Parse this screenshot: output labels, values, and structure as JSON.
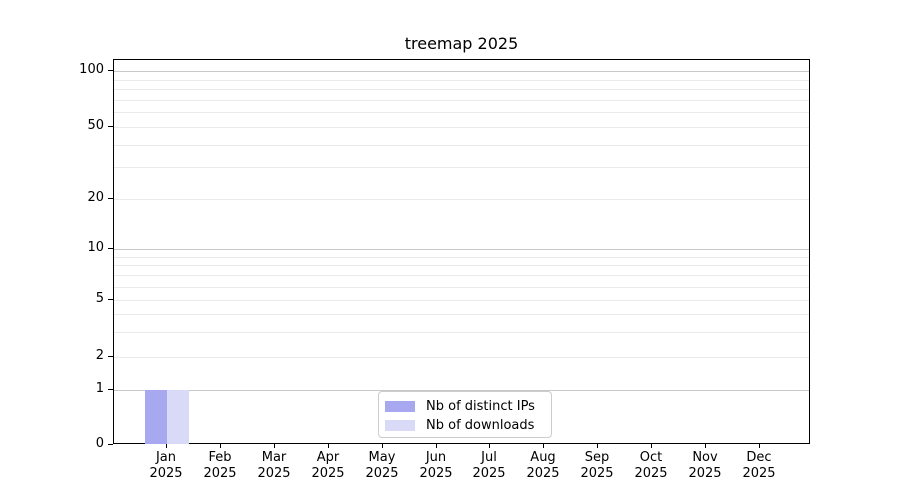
{
  "figure": {
    "background": "#ffffff"
  },
  "chart_data": {
    "type": "bar",
    "title": "treemap 2025",
    "xlabel": "",
    "ylabel": "",
    "categories": [
      "Jan",
      "Feb",
      "Mar",
      "Apr",
      "May",
      "Jun",
      "Jul",
      "Aug",
      "Sep",
      "Oct",
      "Nov",
      "Dec"
    ],
    "category_year_label": "2025",
    "series": [
      {
        "name": "Nb of distinct IPs",
        "color": "#a8a8f0",
        "values": [
          1,
          0,
          0,
          0,
          0,
          0,
          0,
          0,
          0,
          0,
          0,
          0
        ]
      },
      {
        "name": "Nb of downloads",
        "color": "#d9d9f8",
        "values": [
          1,
          0,
          0,
          0,
          0,
          0,
          0,
          0,
          0,
          0,
          0,
          0
        ]
      }
    ],
    "y_axis": {
      "scale": "log-like",
      "range": [
        0,
        100
      ],
      "major_ticks": [
        100,
        50,
        20,
        10,
        5,
        2,
        1,
        0
      ],
      "decade_gridlines": [
        100,
        10,
        1
      ],
      "minor_gridlines": [
        90,
        80,
        70,
        60,
        40,
        30,
        9,
        8,
        7,
        6,
        4,
        3
      ]
    },
    "legend": {
      "position": "bottom-center",
      "entries": [
        "Nb of distinct IPs",
        "Nb of downloads"
      ]
    },
    "grid": true
  },
  "colors": {
    "decade_gridline": "#c8c8c8",
    "minor_gridline": "#eaeaea",
    "axis": "#000000",
    "legend_border": "#cccccc",
    "text": "#000000"
  }
}
